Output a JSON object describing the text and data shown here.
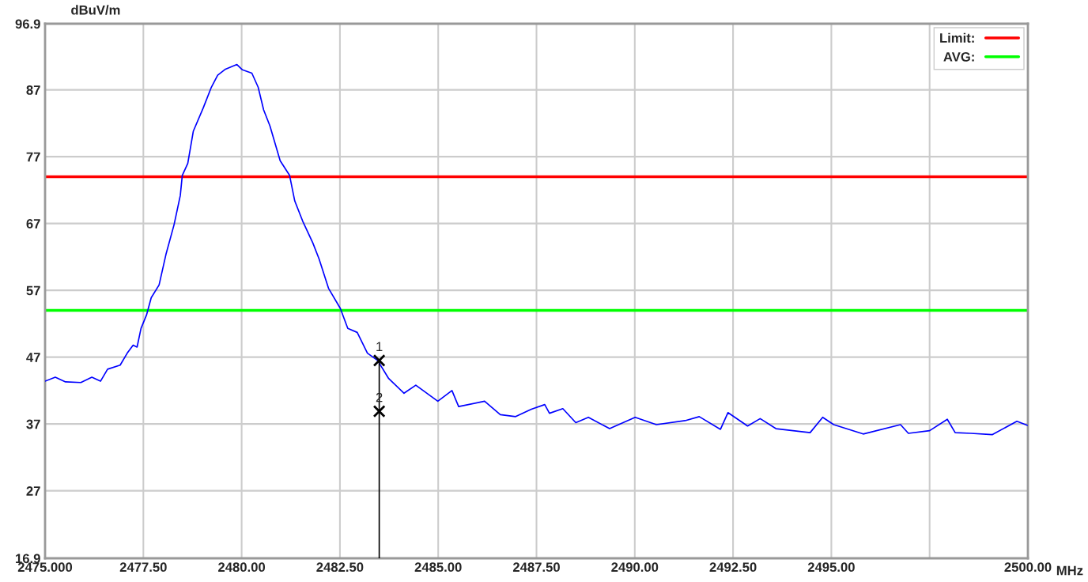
{
  "chart_data": {
    "type": "line",
    "xlabel": "MHz",
    "ylabel": "dBuV/m",
    "xlim": [
      2475,
      2500
    ],
    "ylim": [
      16.9,
      96.9
    ],
    "xticks": [
      {
        "value": 2475,
        "label": "2475.000"
      },
      {
        "value": 2477.5,
        "label": "2477.50"
      },
      {
        "value": 2480,
        "label": "2480.00"
      },
      {
        "value": 2482.5,
        "label": "2482.50"
      },
      {
        "value": 2485,
        "label": "2485.00"
      },
      {
        "value": 2487.5,
        "label": "2487.50"
      },
      {
        "value": 2490,
        "label": "2490.00"
      },
      {
        "value": 2492.5,
        "label": "2492.50"
      },
      {
        "value": 2495,
        "label": "2495.00"
      },
      {
        "value": 2497.5,
        "label": null
      },
      {
        "value": 2500,
        "label": "2500.00"
      }
    ],
    "yticks": [
      16.9,
      27,
      37,
      47,
      57,
      67,
      77,
      87,
      96.9
    ],
    "grid": true,
    "legend": "top right",
    "series": [
      {
        "color": "#0000ff",
        "x": [
          2475.0,
          2475.26,
          2475.52,
          2475.91,
          2476.19,
          2476.41,
          2476.59,
          2476.91,
          2477.09,
          2477.24,
          2477.34,
          2477.44,
          2477.58,
          2477.7,
          2477.9,
          2478.08,
          2478.28,
          2478.44,
          2478.49,
          2478.63,
          2478.77,
          2479.03,
          2479.23,
          2479.39,
          2479.59,
          2479.88,
          2480.02,
          2480.26,
          2480.42,
          2480.56,
          2480.72,
          2480.98,
          2481.22,
          2481.35,
          2481.55,
          2481.81,
          2481.97,
          2482.21,
          2482.51,
          2482.7,
          2482.94,
          2483.2,
          2483.46,
          2483.74,
          2484.13,
          2484.43,
          2484.99,
          2485.35,
          2485.52,
          2486.18,
          2486.58,
          2486.97,
          2487.37,
          2487.71,
          2487.83,
          2488.17,
          2488.5,
          2488.82,
          2489.36,
          2490.01,
          2490.55,
          2491.28,
          2491.64,
          2492.18,
          2492.37,
          2492.87,
          2493.19,
          2493.59,
          2494.46,
          2494.78,
          2495.06,
          2495.81,
          2496.76,
          2496.96,
          2497.5,
          2497.95,
          2498.15,
          2498.55,
          2499.09,
          2499.72,
          2499.98
        ],
        "values": [
          43.4,
          44.0,
          43.3,
          43.2,
          44.0,
          43.4,
          45.2,
          45.8,
          47.6,
          48.8,
          48.5,
          51.3,
          53.3,
          55.9,
          57.8,
          62.5,
          66.8,
          71.2,
          74.2,
          76.0,
          80.8,
          84.4,
          87.4,
          89.2,
          90.1,
          90.8,
          90.0,
          89.5,
          87.4,
          84.0,
          81.6,
          76.4,
          74.2,
          70.4,
          67.4,
          64.1,
          61.7,
          57.3,
          54.3,
          51.3,
          50.7,
          47.6,
          46.5,
          43.8,
          41.6,
          42.8,
          40.4,
          42.0,
          39.6,
          40.4,
          38.4,
          38.1,
          39.2,
          39.9,
          38.6,
          39.3,
          37.2,
          38.0,
          36.3,
          38.0,
          36.9,
          37.5,
          38.1,
          36.2,
          38.7,
          36.7,
          37.8,
          36.3,
          35.7,
          38.0,
          36.9,
          35.5,
          36.9,
          35.6,
          36.0,
          37.7,
          35.7,
          35.6,
          35.4,
          37.4,
          36.8
        ]
      },
      {
        "color": "#000000",
        "x": [
          2483.5,
          2483.5
        ],
        "values": [
          46.5,
          16.9
        ]
      },
      {
        "type": "scatter",
        "color": "#000000",
        "marker": "cross",
        "x": [
          2483.5,
          2483.5
        ],
        "values": [
          46.5,
          38.9
        ]
      }
    ],
    "ref_lines": [
      {
        "axis": "y",
        "value": 74,
        "label": "Limit:",
        "color": "#ff0000"
      },
      {
        "axis": "y",
        "value": 54,
        "label": "AVG:",
        "color": "#00ff00"
      }
    ],
    "annotations": [
      {
        "text": "1",
        "x": 2483.5,
        "y": 46.5
      },
      {
        "text": "2",
        "x": 2483.5,
        "y": 38.9
      }
    ]
  }
}
